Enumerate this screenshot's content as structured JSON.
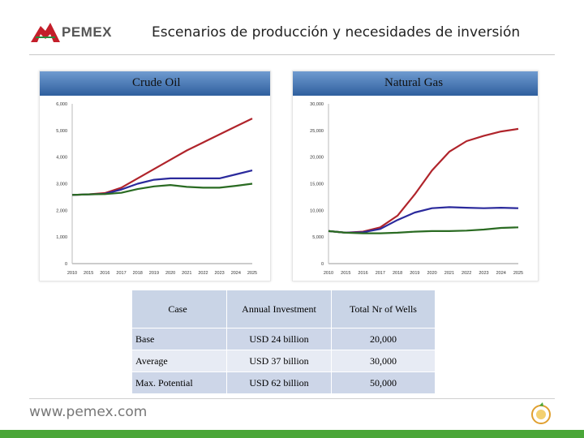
{
  "header": {
    "logo_text": "PEMEX",
    "title": "Escenarios de producción y necesidades de inversión"
  },
  "footer": {
    "website": "www.pemex.com"
  },
  "colors": {
    "high": "#b0242b",
    "medium": "#2b2a9c",
    "base": "#2a6b22",
    "header_gradient_top": "#6f9bd0",
    "header_gradient_bottom": "#2f5f9e",
    "footer_bar": "#4aa638"
  },
  "chart_data": [
    {
      "type": "line",
      "title": "Crude Oil",
      "x": [
        "2010",
        "2015",
        "2016",
        "2017",
        "2018",
        "2019",
        "2020",
        "2021",
        "2022",
        "2023",
        "2024",
        "2025"
      ],
      "ylim": [
        0,
        6000
      ],
      "yticks": [
        "0",
        "1,000",
        "2,000",
        "3,000",
        "4,000",
        "5,000",
        "6,000"
      ],
      "xticks": [
        "2010",
        "2015",
        "2016",
        "2017",
        "2018",
        "2019",
        "2020",
        "2021",
        "2022",
        "2023",
        "2024",
        "2025"
      ],
      "grid": false,
      "series": [
        {
          "color": "#b0242b",
          "values": [
            2580,
            2600,
            2650,
            2850,
            3200,
            3550,
            3900,
            4250,
            4550,
            4850,
            5150,
            5450
          ]
        },
        {
          "color": "#2b2a9c",
          "values": [
            2580,
            2600,
            2620,
            2780,
            3000,
            3150,
            3200,
            3200,
            3200,
            3200,
            3350,
            3500
          ]
        },
        {
          "color": "#2a6b22",
          "values": [
            2580,
            2600,
            2610,
            2660,
            2800,
            2900,
            2950,
            2880,
            2850,
            2850,
            2920,
            3000
          ]
        }
      ]
    },
    {
      "type": "line",
      "title": "Natural Gas",
      "x": [
        "2010",
        "2015",
        "2016",
        "2017",
        "2018",
        "2019",
        "2020",
        "2021",
        "2022",
        "2023",
        "2024",
        "2025"
      ],
      "ylim": [
        0,
        30000
      ],
      "yticks": [
        "0",
        "5,000",
        "10,000",
        "15,000",
        "20,000",
        "25,000",
        "30,000"
      ],
      "xticks": [
        "2010",
        "2015",
        "2016",
        "2017",
        "2018",
        "2019",
        "2020",
        "2021",
        "2022",
        "2023",
        "2024",
        "2025"
      ],
      "grid": false,
      "series": [
        {
          "color": "#b0242b",
          "values": [
            6100,
            5800,
            6000,
            6800,
            9000,
            13000,
            17500,
            21000,
            23000,
            24000,
            24800,
            25300
          ]
        },
        {
          "color": "#2b2a9c",
          "values": [
            6100,
            5800,
            5900,
            6500,
            8200,
            9600,
            10400,
            10600,
            10500,
            10400,
            10500,
            10400
          ]
        },
        {
          "color": "#2a6b22",
          "values": [
            6100,
            5800,
            5700,
            5700,
            5800,
            6000,
            6100,
            6100,
            6200,
            6400,
            6700,
            6800
          ]
        }
      ]
    }
  ],
  "table": {
    "headers": [
      "Case",
      "Annual Investment",
      "Total Nr of Wells"
    ],
    "rows": [
      [
        "Base",
        "USD 24 billion",
        "20,000"
      ],
      [
        "Average",
        "USD 37 billion",
        "30,000"
      ],
      [
        "Max. Potential",
        "USD 62 billion",
        "50,000"
      ]
    ]
  }
}
